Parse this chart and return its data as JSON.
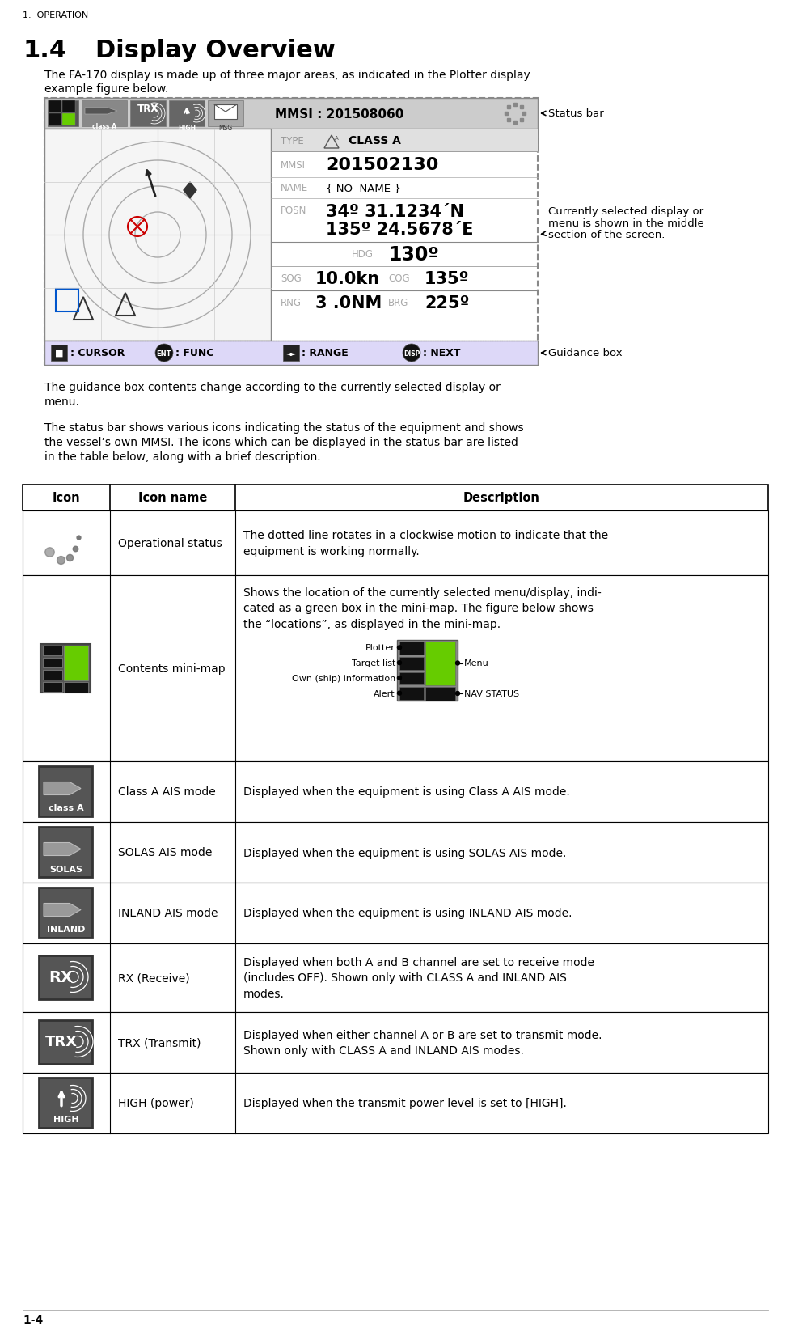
{
  "title_prefix": "1.  OPERATION",
  "section_num": "1.4",
  "section_title": "Display Overview",
  "body_text1a": "The FA-170 display is made up of three major areas, as indicated in the Plotter display",
  "body_text1b": "example figure below.",
  "body_text2a": "The guidance box contents change according to the currently selected display or",
  "body_text2b": "menu.",
  "body_text3a": "The status bar shows various icons indicating the status of the equipment and shows",
  "body_text3b": "the vessel’s own MMSI. The icons which can be displayed in the status bar are listed",
  "body_text3c": "in the table below, along with a brief description.",
  "footer_text": "1-4",
  "table_headers": [
    "Icon",
    "Icon name",
    "Description"
  ],
  "table_rows": [
    {
      "icon_type": "operational_status",
      "name": "Operational status",
      "desc": "The dotted line rotates in a clockwise motion to indicate that the\nequipment is working normally."
    },
    {
      "icon_type": "contents_minimap",
      "name": "Contents mini-map",
      "desc": "Shows the location of the currently selected menu/display, indi-\ncated as a green box in the mini-map. The figure below shows\nthe “locations”, as displayed in the mini-map."
    },
    {
      "icon_type": "class_a",
      "name": "Class A AIS mode",
      "desc": "Displayed when the equipment is using Class A AIS mode."
    },
    {
      "icon_type": "solas",
      "name": "SOLAS AIS mode",
      "desc": "Displayed when the equipment is using SOLAS AIS mode."
    },
    {
      "icon_type": "inland",
      "name": "INLAND AIS mode",
      "desc": "Displayed when the equipment is using INLAND AIS mode."
    },
    {
      "icon_type": "rx",
      "name": "RX (Receive)",
      "desc": "Displayed when both A and B channel are set to receive mode\n(includes OFF). Shown only with CLASS A and INLAND AIS\nmodes."
    },
    {
      "icon_type": "trx",
      "name": "TRX (Transmit)",
      "desc": "Displayed when either channel A or B are set to transmit mode.\nShown only with CLASS A and INLAND AIS modes."
    },
    {
      "icon_type": "high",
      "name": "HIGH (power)",
      "desc": "Displayed when the transmit power level is set to [HIGH]."
    }
  ],
  "bg_color": "#ffffff",
  "annotation_status_bar": "Status bar",
  "annotation_middle": "Currently selected display or\nmenu is shown in the middle\nsection of the screen.",
  "annotation_guidance": "Guidance box",
  "minimap_left_labels": [
    "Plotter",
    "Target list",
    "Own (ship) information",
    "Alert"
  ],
  "minimap_right_labels": [
    "Menu",
    "NAV STATUS"
  ]
}
